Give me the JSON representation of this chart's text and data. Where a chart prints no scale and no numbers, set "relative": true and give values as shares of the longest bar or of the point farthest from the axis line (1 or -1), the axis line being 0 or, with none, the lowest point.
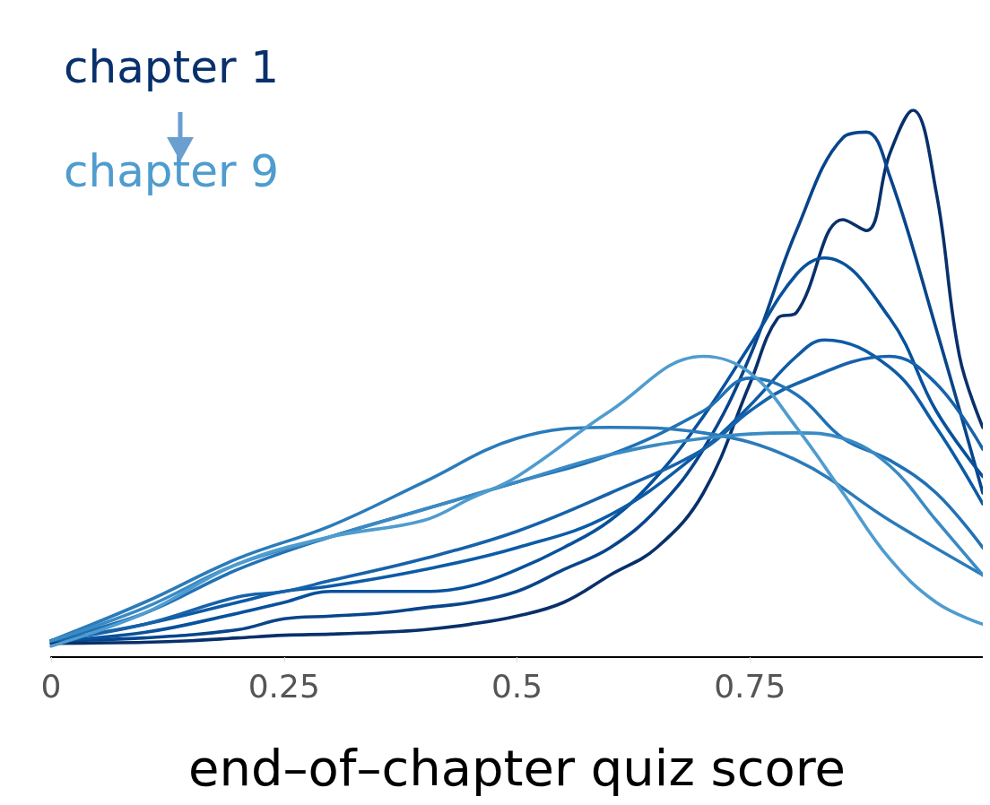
{
  "chart_data": {
    "type": "line",
    "relative": true,
    "xlabel": "end–of–chapter quiz score",
    "xlim": [
      0,
      1
    ],
    "xticks": [
      0,
      0.25,
      0.5,
      0.75
    ],
    "marker": "none",
    "line_style": "solid",
    "annotations": [
      "chapter 1",
      "chapter 9"
    ],
    "series": [
      {
        "color": "#08306b",
        "x": [
          0,
          0.05,
          0.1,
          0.15,
          0.2,
          0.25,
          0.3,
          0.35,
          0.4,
          0.45,
          0.5,
          0.55,
          0.6,
          0.65,
          0.7,
          0.75,
          0.78,
          0.8,
          0.85,
          0.875,
          0.9,
          0.925,
          0.95,
          0.975,
          1
        ],
        "values": [
          0.025,
          0.026,
          0.027,
          0.03,
          0.035,
          0.04,
          0.042,
          0.045,
          0.05,
          0.06,
          0.075,
          0.1,
          0.15,
          0.2,
          0.3,
          0.5,
          0.62,
          0.63,
          0.8,
          0.78,
          0.92,
          1,
          0.85,
          0.55,
          0.42
        ]
      },
      {
        "color": "#08458b",
        "x": [
          0,
          0.1,
          0.2,
          0.25,
          0.3,
          0.35,
          0.4,
          0.45,
          0.5,
          0.55,
          0.6,
          0.65,
          0.7,
          0.75,
          0.8,
          0.85,
          0.875,
          0.9,
          0.95,
          1
        ],
        "values": [
          0.03,
          0.035,
          0.05,
          0.07,
          0.075,
          0.08,
          0.09,
          0.1,
          0.12,
          0.16,
          0.2,
          0.27,
          0.38,
          0.55,
          0.78,
          0.95,
          0.96,
          0.88,
          0.6,
          0.3
        ]
      },
      {
        "color": "#08519c",
        "x": [
          0,
          0.1,
          0.2,
          0.25,
          0.3,
          0.35,
          0.4,
          0.45,
          0.5,
          0.55,
          0.6,
          0.65,
          0.7,
          0.75,
          0.8,
          0.83,
          0.9,
          0.95,
          1
        ],
        "values": [
          0.03,
          0.045,
          0.08,
          0.1,
          0.12,
          0.12,
          0.12,
          0.13,
          0.16,
          0.2,
          0.25,
          0.33,
          0.44,
          0.57,
          0.7,
          0.73,
          0.62,
          0.45,
          0.33
        ]
      },
      {
        "color": "#0d5ba6",
        "x": [
          0,
          0.1,
          0.2,
          0.25,
          0.3,
          0.4,
          0.5,
          0.6,
          0.7,
          0.75,
          0.8,
          0.83,
          0.9,
          0.95,
          1
        ],
        "values": [
          0.03,
          0.06,
          0.1,
          0.12,
          0.13,
          0.16,
          0.2,
          0.26,
          0.38,
          0.46,
          0.55,
          0.58,
          0.53,
          0.42,
          0.28
        ]
      },
      {
        "color": "#1662ab",
        "x": [
          0,
          0.1,
          0.2,
          0.25,
          0.3,
          0.4,
          0.5,
          0.6,
          0.7,
          0.75,
          0.8,
          0.9,
          0.95,
          1
        ],
        "values": [
          0.03,
          0.06,
          0.11,
          0.12,
          0.14,
          0.18,
          0.23,
          0.3,
          0.38,
          0.45,
          0.5,
          0.55,
          0.5,
          0.38
        ]
      },
      {
        "color": "#2171b5",
        "x": [
          0,
          0.1,
          0.2,
          0.3,
          0.4,
          0.5,
          0.6,
          0.7,
          0.75,
          0.8,
          0.85,
          0.9,
          0.95,
          1
        ],
        "values": [
          0.03,
          0.08,
          0.16,
          0.22,
          0.27,
          0.32,
          0.37,
          0.45,
          0.51,
          0.48,
          0.4,
          0.36,
          0.3,
          0.2
        ]
      },
      {
        "color": "#2b7bba",
        "x": [
          0,
          0.1,
          0.2,
          0.3,
          0.4,
          0.5,
          0.6,
          0.7,
          0.8,
          0.9,
          1
        ],
        "values": [
          0.03,
          0.1,
          0.18,
          0.24,
          0.32,
          0.4,
          0.42,
          0.41,
          0.36,
          0.25,
          0.15
        ]
      },
      {
        "color": "#3a8ac4",
        "x": [
          0,
          0.1,
          0.2,
          0.3,
          0.4,
          0.5,
          0.6,
          0.7,
          0.8,
          0.85,
          0.9,
          0.95,
          1
        ],
        "values": [
          0.03,
          0.09,
          0.17,
          0.22,
          0.27,
          0.32,
          0.37,
          0.4,
          0.41,
          0.4,
          0.35,
          0.25,
          0.15
        ]
      },
      {
        "color": "#4f9ccf",
        "x": [
          0,
          0.1,
          0.2,
          0.3,
          0.4,
          0.45,
          0.5,
          0.6,
          0.7,
          0.75,
          0.8,
          0.85,
          0.9,
          0.95,
          1
        ],
        "values": [
          0.02,
          0.08,
          0.17,
          0.22,
          0.25,
          0.29,
          0.33,
          0.45,
          0.55,
          0.52,
          0.42,
          0.3,
          0.18,
          0.1,
          0.06
        ]
      }
    ]
  }
}
